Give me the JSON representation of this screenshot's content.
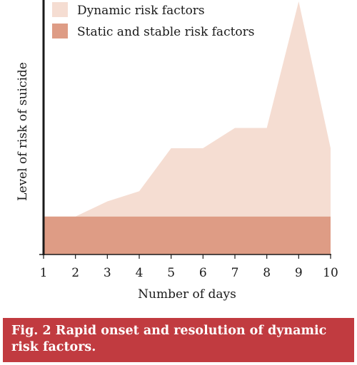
{
  "colors": {
    "dynamic": "#f5ddd2",
    "static": "#de9c85",
    "axis": "#1a1a1a",
    "caption_bg": "#c13b40"
  },
  "chart_data": {
    "type": "area",
    "x": [
      1,
      2,
      3,
      4,
      5,
      6,
      7,
      8,
      9,
      10
    ],
    "x_ticks": [
      "1",
      "2",
      "3",
      "4",
      "5",
      "6",
      "7",
      "8",
      "9",
      "10"
    ],
    "xlabel": "Number of days",
    "ylabel": "Level of risk of suicide",
    "xlim": [
      1,
      10
    ],
    "ylim": [
      0,
      100
    ],
    "y_ticks_shown": false,
    "grid": false,
    "legend_position": "top-left",
    "stacked": true,
    "series": [
      {
        "name": "Static and stable risk factors",
        "values": [
          15,
          15,
          15,
          15,
          15,
          15,
          15,
          15,
          15,
          15
        ]
      },
      {
        "name": "Dynamic risk factors",
        "values": [
          0,
          0,
          6,
          10,
          27,
          27,
          35,
          35,
          85,
          27
        ]
      }
    ]
  },
  "caption": {
    "text": "Fig. 2  Rapid onset and resolution of dynamic risk factors."
  }
}
